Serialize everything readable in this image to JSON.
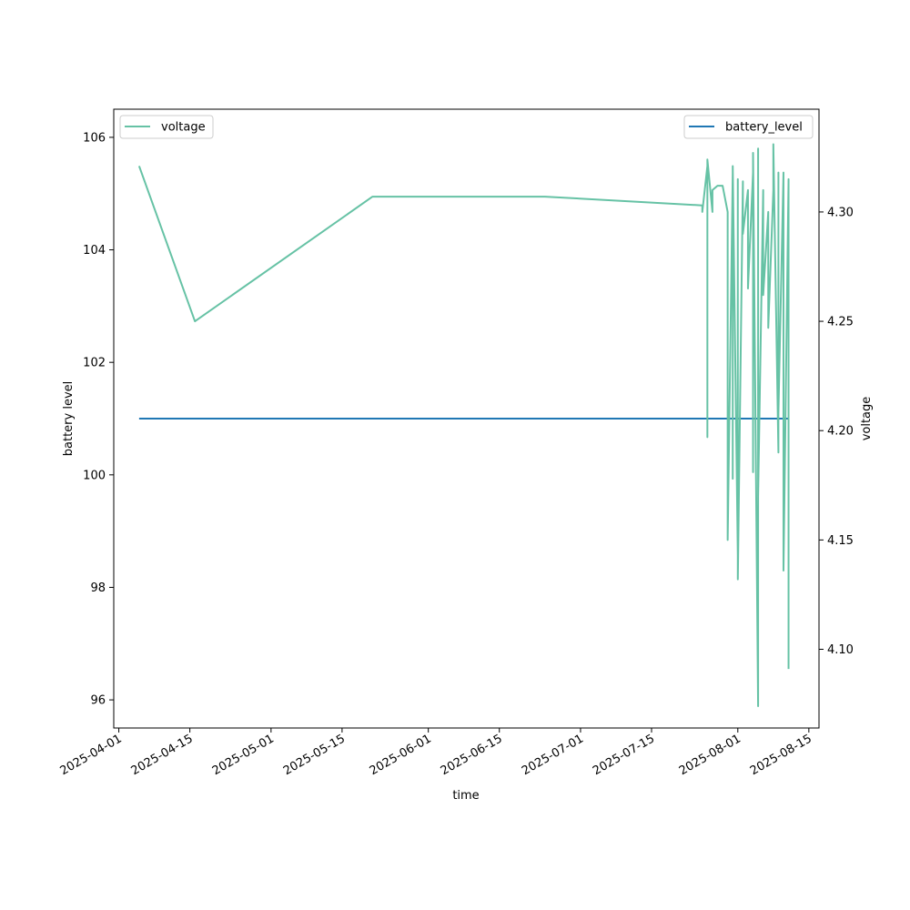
{
  "chart_data": {
    "type": "line",
    "title": "",
    "xlabel": "time",
    "ylabel_left": "battery level",
    "ylabel_right": "voltage",
    "x_ticks": [
      "2025-04-01",
      "2025-04-15",
      "2025-05-01",
      "2025-05-15",
      "2025-06-01",
      "2025-06-15",
      "2025-07-01",
      "2025-07-15",
      "2025-08-01",
      "2025-08-15"
    ],
    "y_left_ticks": [
      96,
      98,
      100,
      102,
      104,
      106
    ],
    "y_right_ticks": [
      4.1,
      4.15,
      4.2,
      4.25,
      4.3
    ],
    "xlim": [
      "2025-03-31",
      "2025-08-17"
    ],
    "ylim_left": [
      95.5,
      106.5
    ],
    "ylim_right": [
      4.064,
      4.347
    ],
    "grid": false,
    "colors": {
      "voltage": "#66c2a5",
      "battery_level": "#1f77b4"
    },
    "legend_left": {
      "label": "voltage",
      "placement": "upper-left"
    },
    "legend_right": {
      "label": "battery_level",
      "placement": "upper-right"
    },
    "series": [
      {
        "name": "battery_level",
        "axis": "left",
        "x": [
          "2025-04-05",
          "2025-08-11"
        ],
        "y": [
          101,
          101
        ]
      },
      {
        "name": "voltage",
        "axis": "right",
        "x": [
          "2025-04-05",
          "2025-04-16",
          "2025-05-21",
          "2025-06-24",
          "2025-07-25",
          "2025-07-25",
          "2025-07-26",
          "2025-07-26",
          "2025-07-26",
          "2025-07-27",
          "2025-07-27",
          "2025-07-28",
          "2025-07-29",
          "2025-07-30",
          "2025-07-30",
          "2025-07-31",
          "2025-07-31",
          "2025-07-31",
          "2025-08-01",
          "2025-08-01",
          "2025-08-01",
          "2025-08-02",
          "2025-08-02",
          "2025-08-03",
          "2025-08-03",
          "2025-08-04",
          "2025-08-04",
          "2025-08-04",
          "2025-08-05",
          "2025-08-05",
          "2025-08-05",
          "2025-08-06",
          "2025-08-06",
          "2025-08-07",
          "2025-08-07",
          "2025-08-08",
          "2025-08-08",
          "2025-08-09",
          "2025-08-09",
          "2025-08-09",
          "2025-08-10",
          "2025-08-10",
          "2025-08-11",
          "2025-08-11"
        ],
        "y": [
          4.321,
          4.25,
          4.307,
          4.307,
          4.303,
          4.3,
          4.321,
          4.197,
          4.324,
          4.3,
          4.31,
          4.312,
          4.312,
          4.3,
          4.15,
          4.318,
          4.178,
          4.321,
          4.143,
          4.315,
          4.132,
          4.314,
          4.29,
          4.31,
          4.265,
          4.318,
          4.181,
          4.327,
          4.074,
          4.329,
          4.17,
          4.31,
          4.262,
          4.3,
          4.247,
          4.31,
          4.331,
          4.19,
          4.318,
          4.208,
          4.318,
          4.136,
          4.315,
          4.091
        ]
      }
    ]
  }
}
